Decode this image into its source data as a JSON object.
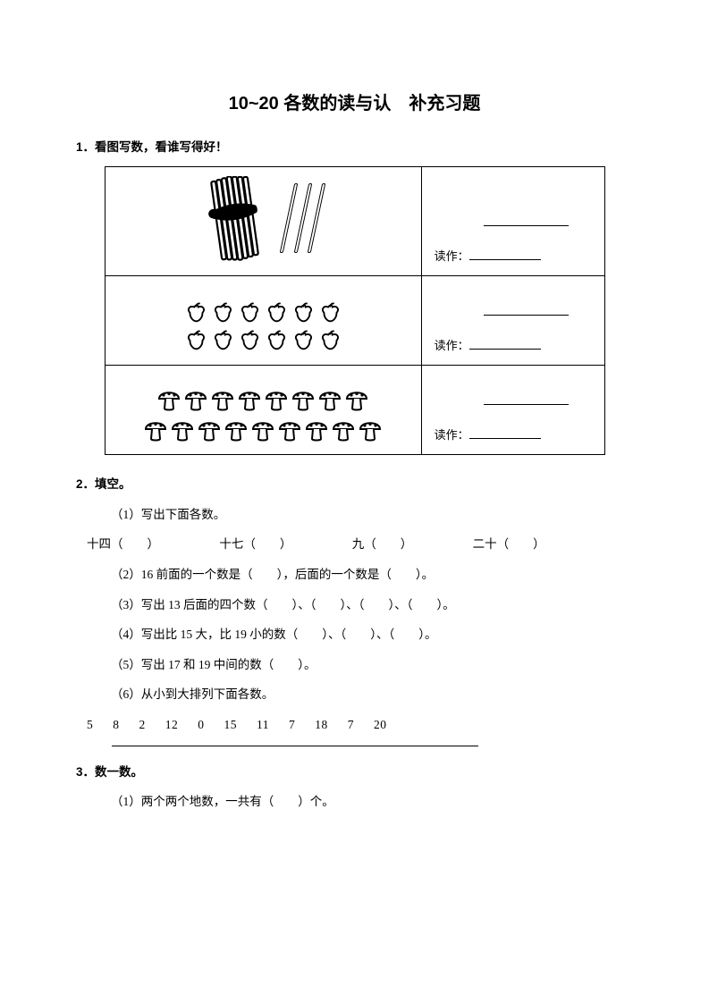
{
  "title": "10~20 各数的读与认　补充习题",
  "q1": {
    "heading": "1．看图写数，看谁写得好！",
    "read_label": "读作：",
    "rows": [
      {
        "type": "sticks",
        "bundle": 10,
        "loose": 3
      },
      {
        "type": "apples",
        "rows": [
          6,
          6
        ]
      },
      {
        "type": "mushrooms",
        "rows": [
          8,
          9
        ]
      }
    ]
  },
  "q2": {
    "heading": "2．填空。",
    "p1_label": "（1）写出下面各数。",
    "p1_items": [
      "十四（　　）",
      "十七（　　）",
      "九（　　）",
      "二十（　　）"
    ],
    "p2": "（2）16 前面的一个数是（　　），后面的一个数是（　　）。",
    "p3": "（3）写出 13 后面的四个数（　　）、（　　）、（　　）、（　　）。",
    "p4": "（4）写出比 15 大，比 19 小的数（　　）、（　　）、（　　）。",
    "p5": "（5）写出 17 和 19 中间的数（　　）。",
    "p6": "（6）从小到大排列下面各数。",
    "nums": [
      "5",
      "8",
      "2",
      "12",
      "0",
      "15",
      "11",
      "7",
      "18",
      "7",
      "20"
    ]
  },
  "q3": {
    "heading": "3．数一数。",
    "p1": "（1）两个两个地数，一共有（　　）个。"
  },
  "colors": {
    "text": "#000000",
    "background": "#ffffff",
    "border": "#000000"
  }
}
